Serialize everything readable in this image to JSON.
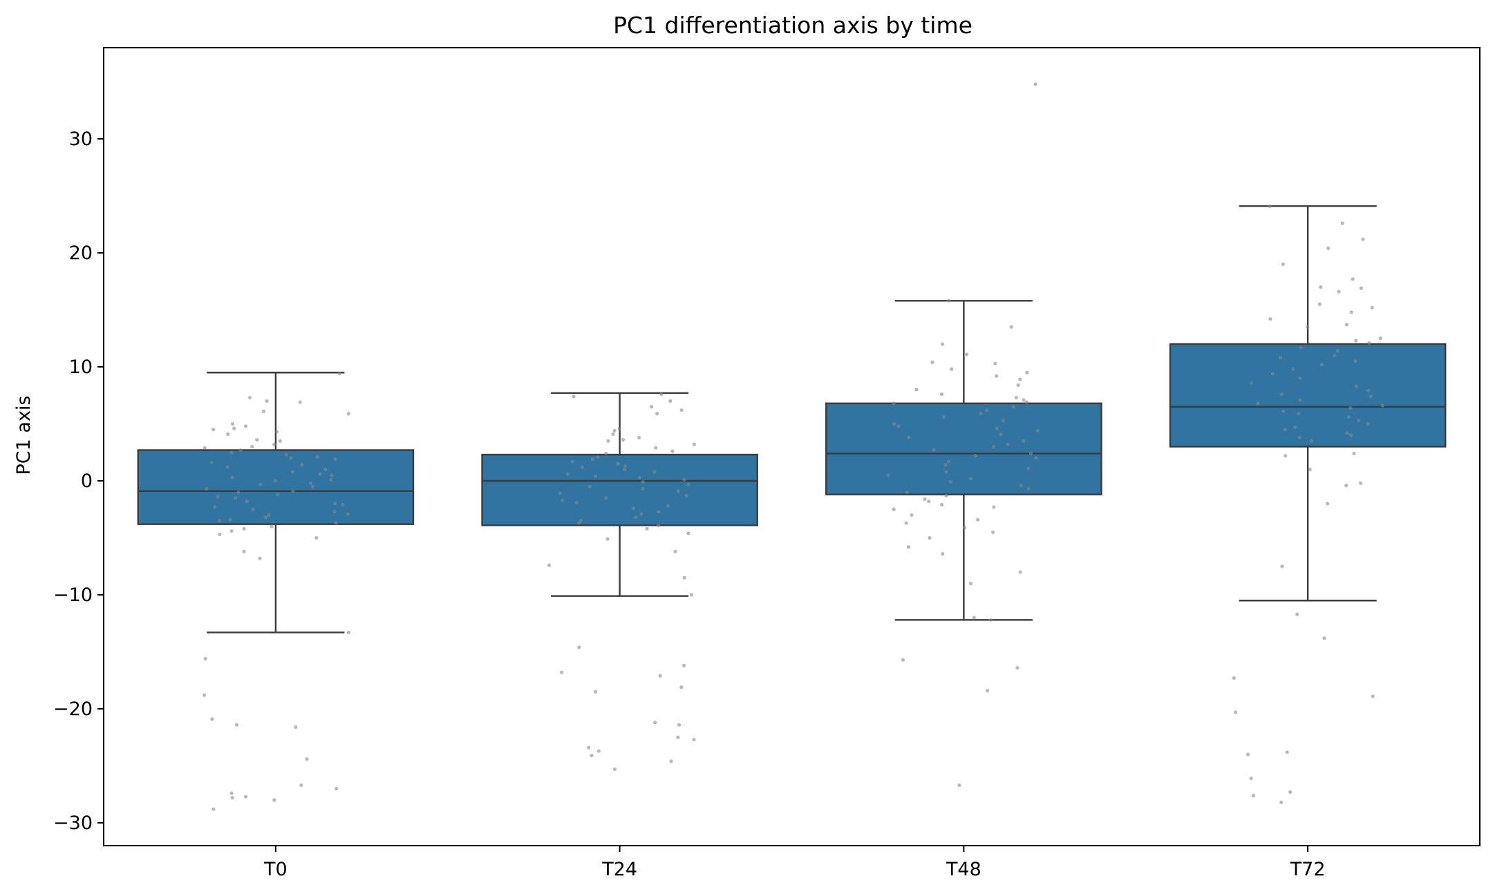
{
  "chart_data": {
    "type": "box",
    "title": "PC1 differentiation axis by time",
    "xlabel": "",
    "ylabel": "PC1 axis",
    "categories": [
      "T0",
      "T24",
      "T48",
      "T72"
    ],
    "ylim": [
      -32,
      38
    ],
    "yticks": [
      -30,
      -20,
      -10,
      0,
      10,
      20,
      30
    ],
    "ytick_labels": [
      "−30",
      "−20",
      "−10",
      "0",
      "10",
      "20",
      "30"
    ],
    "grid": false,
    "box_color": "#3274a1",
    "edge_color": "#3b3b3b",
    "point_color": "#888888",
    "boxes": [
      {
        "category": "T0",
        "whisker_low": -13.3,
        "q1": -3.8,
        "median": -0.9,
        "q3": 2.7,
        "whisker_high": 9.5
      },
      {
        "category": "T24",
        "whisker_low": -10.1,
        "q1": -3.9,
        "median": 0.0,
        "q3": 2.3,
        "whisker_high": 7.7
      },
      {
        "category": "T48",
        "whisker_low": -12.2,
        "q1": -1.2,
        "median": 2.4,
        "q3": 6.8,
        "whisker_high": 15.8
      },
      {
        "category": "T72",
        "whisker_low": -10.5,
        "q1": 3.0,
        "median": 6.5,
        "q3": 12.0,
        "whisker_high": 24.1
      }
    ],
    "points": [
      {
        "category": "T0",
        "values": [
          9.4,
          7.3,
          7.0,
          6.9,
          6.1,
          5.9,
          5.0,
          4.8,
          4.6,
          4.5,
          4.3,
          4.1,
          3.6,
          3.5,
          3.2,
          3.0,
          2.9,
          2.7,
          2.5,
          2.3,
          2.1,
          2.0,
          1.9,
          1.6,
          1.4,
          1.2,
          1.0,
          0.8,
          0.6,
          0.5,
          0.3,
          0.1,
          0.0,
          -0.2,
          -0.3,
          -0.5,
          -0.7,
          -0.9,
          -1.0,
          -1.2,
          -1.4,
          -1.5,
          -1.8,
          -2.0,
          -2.1,
          -2.3,
          -2.5,
          -2.7,
          -2.9,
          -3.0,
          -3.2,
          -3.4,
          -3.5,
          -3.7,
          -4.0,
          -4.2,
          -4.4,
          -4.7,
          -5.0,
          -6.2,
          -6.8,
          -13.3,
          -15.6,
          -18.8,
          -20.9,
          -21.4,
          -21.6,
          -24.4,
          -26.7,
          -27.0,
          -27.4,
          -27.7,
          -27.8,
          -28.0,
          -28.8
        ]
      },
      {
        "category": "T24",
        "values": [
          7.6,
          7.4,
          7.0,
          6.5,
          6.2,
          5.9,
          4.6,
          4.4,
          4.1,
          3.8,
          3.6,
          3.5,
          3.2,
          2.9,
          2.6,
          2.4,
          2.1,
          1.9,
          1.7,
          1.5,
          1.3,
          1.2,
          1.0,
          0.8,
          0.6,
          0.4,
          0.3,
          0.1,
          -0.1,
          -0.3,
          -0.5,
          -0.7,
          -0.9,
          -1.1,
          -1.3,
          -1.5,
          -1.7,
          -1.9,
          -2.2,
          -2.4,
          -2.7,
          -2.9,
          -3.2,
          -3.5,
          -3.7,
          -3.9,
          -4.2,
          -4.6,
          -5.1,
          -6.2,
          -7.4,
          -8.5,
          -10.0,
          -14.6,
          -16.2,
          -16.8,
          -17.1,
          -18.1,
          -18.5,
          -21.2,
          -21.4,
          -22.5,
          -22.7,
          -23.4,
          -23.7,
          -24.1,
          -24.6,
          -25.3
        ]
      },
      {
        "category": "T48",
        "values": [
          34.8,
          15.8,
          13.5,
          12.0,
          11.1,
          10.4,
          10.3,
          9.8,
          9.5,
          9.2,
          8.9,
          8.4,
          8.0,
          7.6,
          7.3,
          7.1,
          6.9,
          6.8,
          6.5,
          6.2,
          5.9,
          5.6,
          5.3,
          5.0,
          4.8,
          4.6,
          4.4,
          4.1,
          3.8,
          3.5,
          3.2,
          3.0,
          2.7,
          2.4,
          2.2,
          2.0,
          1.7,
          1.4,
          1.1,
          0.8,
          0.5,
          0.2,
          -0.1,
          -0.4,
          -0.7,
          -1.0,
          -1.3,
          -1.6,
          -1.8,
          -2.1,
          -2.3,
          -2.5,
          -3.0,
          -3.4,
          -3.7,
          -4.1,
          -4.5,
          -5.0,
          -5.8,
          -6.4,
          -8.0,
          -9.0,
          -12.0,
          -12.2,
          -15.7,
          -16.4,
          -18.4,
          -26.7
        ]
      },
      {
        "category": "T72",
        "values": [
          24.1,
          22.6,
          21.2,
          20.4,
          19.0,
          17.7,
          17.0,
          16.9,
          16.6,
          15.5,
          15.2,
          14.8,
          14.2,
          13.7,
          13.5,
          12.5,
          12.3,
          12.1,
          11.7,
          11.4,
          11.0,
          10.8,
          10.5,
          10.2,
          9.8,
          9.4,
          9.0,
          8.6,
          8.3,
          7.9,
          7.6,
          7.4,
          7.1,
          6.8,
          6.6,
          6.4,
          6.1,
          5.9,
          5.6,
          5.3,
          5.0,
          4.7,
          4.5,
          4.2,
          4.0,
          3.8,
          3.5,
          2.4,
          2.2,
          1.0,
          -0.2,
          -0.4,
          -2.0,
          -7.5,
          -11.7,
          -13.8,
          -17.3,
          -18.9,
          -20.3,
          -23.8,
          -24.0,
          -26.1,
          -27.3,
          -27.6,
          -28.2
        ]
      }
    ]
  }
}
